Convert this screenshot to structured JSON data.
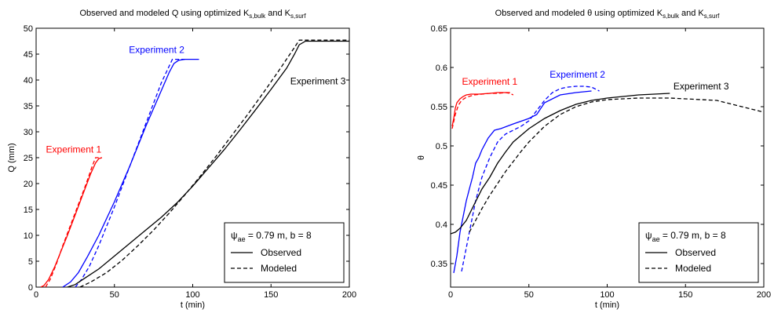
{
  "chart_data": [
    {
      "type": "line",
      "title_parts": [
        "Observed and modeled Q using optimized K",
        "s,bulk",
        " and K",
        "s,surf"
      ],
      "xlabel": "t (min)",
      "ylabel": "Q (mm)",
      "xlim": [
        0,
        200
      ],
      "ylim": [
        0,
        50
      ],
      "xticks": [
        "0",
        "50",
        "100",
        "150",
        "200"
      ],
      "yticks": [
        "0",
        "5",
        "10",
        "15",
        "20",
        "25",
        "30",
        "35",
        "40",
        "45",
        "50"
      ],
      "legend": {
        "placement": "bottom-right",
        "header_parts": [
          "ψ",
          "ae",
          " = 0.79 m, b = 8"
        ],
        "entries": [
          "Observed",
          "Modeled"
        ]
      },
      "annotations": [
        {
          "text": "Experiment 1",
          "color": "#ff0000",
          "x": 24,
          "y": 26
        },
        {
          "text": "Experiment 2",
          "color": "#0000ff",
          "x": 77,
          "y": 45.2
        },
        {
          "text": "Experiment 3",
          "color": "#000000",
          "x": 180,
          "y": 39.2
        }
      ],
      "series": [
        {
          "experiment": "Experiment 1",
          "kind": "Observed",
          "color": "#ff0000",
          "x": [
            3,
            5,
            8,
            12,
            16,
            20,
            25,
            30,
            35,
            38,
            40,
            42
          ],
          "y": [
            0,
            0.3,
            1.5,
            4,
            7,
            10,
            14,
            18,
            22,
            24,
            24.8,
            25
          ]
        },
        {
          "experiment": "Experiment 1",
          "kind": "Modeled",
          "color": "#ff0000",
          "x": [
            6,
            9,
            13,
            17,
            22,
            27,
            32,
            36,
            38,
            42
          ],
          "y": [
            0,
            1.5,
            4.5,
            8,
            12,
            16,
            20,
            23.5,
            25,
            25
          ]
        },
        {
          "experiment": "Experiment 2",
          "kind": "Observed",
          "color": "#0000ff",
          "x": [
            17,
            22,
            27,
            33,
            40,
            50,
            60,
            70,
            80,
            85,
            88,
            91,
            95,
            104
          ],
          "y": [
            0,
            1,
            2.8,
            6,
            10,
            16.5,
            23.5,
            31,
            38,
            41.5,
            43.2,
            43.8,
            44,
            44
          ]
        },
        {
          "experiment": "Experiment 2",
          "kind": "Modeled",
          "color": "#0000ff",
          "x": [
            25,
            29,
            34,
            40,
            50,
            60,
            70,
            80,
            87,
            90,
            95
          ],
          "y": [
            0,
            1.5,
            4,
            8,
            15.5,
            23.5,
            31.5,
            39.5,
            44,
            44,
            44
          ]
        },
        {
          "experiment": "Experiment 3",
          "kind": "Observed",
          "color": "#000000",
          "x": [
            20,
            25,
            30,
            40,
            50,
            60,
            70,
            80,
            90,
            100,
            110,
            120,
            130,
            140,
            150,
            160,
            165,
            168,
            172,
            180,
            200
          ],
          "y": [
            0,
            0.5,
            1.5,
            3.5,
            6,
            8.5,
            11,
            13.5,
            16.3,
            19.5,
            23,
            26.5,
            30.3,
            34.2,
            38.2,
            42.3,
            45,
            46.8,
            47.5,
            47.5,
            47.5
          ]
        },
        {
          "experiment": "Experiment 3",
          "kind": "Modeled",
          "color": "#000000",
          "x": [
            28,
            35,
            45,
            55,
            65,
            75,
            85,
            95,
            105,
            115,
            125,
            135,
            145,
            155,
            165,
            168,
            175,
            200
          ],
          "y": [
            0,
            1,
            2.8,
            5.2,
            8,
            11,
            14.3,
            17.8,
            21.5,
            25.3,
            29.3,
            33.3,
            37.5,
            41.8,
            46.3,
            47.7,
            47.7,
            47.7
          ]
        }
      ]
    },
    {
      "type": "line",
      "title_parts": [
        "Observed and modeled θ using optimized K",
        "s,bulk",
        " and K",
        "s,surf"
      ],
      "xlabel": "t (min)",
      "ylabel": "θ",
      "xlim": [
        0,
        200
      ],
      "ylim": [
        0.32,
        0.65
      ],
      "xticks": [
        "0",
        "50",
        "100",
        "150",
        "200"
      ],
      "yticks": [
        "0.35",
        "0.4",
        "0.45",
        "0.5",
        "0.55",
        "0.6",
        "0.65"
      ],
      "legend": {
        "placement": "bottom-right",
        "header_parts": [
          "ψ",
          "ae",
          " = 0.79 m, b = 8"
        ],
        "entries": [
          "Observed",
          "Modeled"
        ]
      },
      "annotations": [
        {
          "text": "Experiment 1",
          "color": "#ff0000",
          "x": 25,
          "y": 0.578
        },
        {
          "text": "Experiment 2",
          "color": "#0000ff",
          "x": 81,
          "y": 0.587
        },
        {
          "text": "Experiment 3",
          "color": "#000000",
          "x": 160,
          "y": 0.572
        }
      ],
      "series": [
        {
          "experiment": "Experiment 1",
          "kind": "Observed",
          "color": "#ff0000",
          "x": [
            1,
            2,
            3,
            4,
            6,
            8,
            10,
            13,
            18,
            25,
            30,
            35,
            38
          ],
          "y": [
            0.525,
            0.535,
            0.548,
            0.555,
            0.56,
            0.563,
            0.565,
            0.566,
            0.566,
            0.567,
            0.568,
            0.568,
            0.568
          ]
        },
        {
          "experiment": "Experiment 1",
          "kind": "Modeled",
          "color": "#ff0000",
          "x": [
            1,
            3,
            5,
            7,
            10,
            15,
            20,
            25,
            30,
            35,
            38,
            40
          ],
          "y": [
            0.522,
            0.54,
            0.552,
            0.558,
            0.562,
            0.565,
            0.566,
            0.567,
            0.567,
            0.568,
            0.567,
            0.565
          ]
        },
        {
          "experiment": "Experiment 2",
          "kind": "Observed",
          "color": "#0000ff",
          "x": [
            2,
            4,
            6,
            8,
            10,
            12,
            14,
            16,
            18,
            20,
            24,
            28,
            32,
            40,
            50,
            55,
            60,
            70,
            80,
            90
          ],
          "y": [
            0.338,
            0.36,
            0.39,
            0.41,
            0.43,
            0.445,
            0.46,
            0.478,
            0.485,
            0.495,
            0.51,
            0.52,
            0.522,
            0.528,
            0.535,
            0.54,
            0.555,
            0.565,
            0.568,
            0.57
          ]
        },
        {
          "experiment": "Experiment 2",
          "kind": "Modeled",
          "color": "#0000ff",
          "x": [
            7,
            10,
            13,
            16,
            20,
            25,
            30,
            35,
            40,
            45,
            50,
            55,
            60,
            65,
            70,
            75,
            80,
            85,
            90,
            95
          ],
          "y": [
            0.34,
            0.37,
            0.4,
            0.43,
            0.46,
            0.485,
            0.505,
            0.515,
            0.52,
            0.525,
            0.532,
            0.545,
            0.558,
            0.568,
            0.573,
            0.575,
            0.576,
            0.576,
            0.575,
            0.57
          ]
        },
        {
          "experiment": "Experiment 3",
          "kind": "Observed",
          "color": "#000000",
          "x": [
            0,
            3,
            6,
            10,
            15,
            20,
            25,
            30,
            35,
            40,
            50,
            60,
            70,
            80,
            90,
            100,
            120,
            140
          ],
          "y": [
            0.388,
            0.39,
            0.395,
            0.405,
            0.425,
            0.445,
            0.46,
            0.478,
            0.492,
            0.505,
            0.522,
            0.535,
            0.545,
            0.553,
            0.558,
            0.561,
            0.565,
            0.567
          ]
        },
        {
          "experiment": "Experiment 3",
          "kind": "Modeled",
          "color": "#000000",
          "x": [
            12,
            16,
            20,
            25,
            30,
            35,
            40,
            45,
            50,
            60,
            70,
            80,
            90,
            100,
            120,
            140,
            160,
            170,
            180,
            190,
            200
          ],
          "y": [
            0.39,
            0.405,
            0.42,
            0.437,
            0.452,
            0.467,
            0.48,
            0.493,
            0.505,
            0.525,
            0.54,
            0.55,
            0.556,
            0.559,
            0.561,
            0.561,
            0.559,
            0.558,
            0.553,
            0.548,
            0.543
          ]
        }
      ]
    }
  ]
}
